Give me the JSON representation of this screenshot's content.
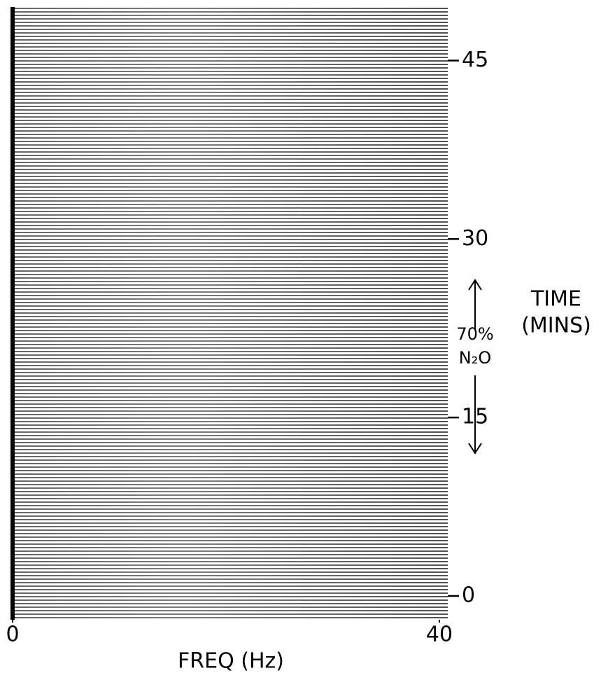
{
  "chart_data": {
    "type": "spectral-array",
    "x_label": "FREQ (Hz)",
    "y_label": [
      "TIME",
      "(MINS)"
    ],
    "annotations": [
      "70%",
      "N₂O"
    ],
    "xlim": [
      0,
      40
    ],
    "xticks": [
      0,
      40
    ],
    "ylim": [
      -2,
      49.5
    ],
    "yticks": [
      0,
      15,
      30,
      45
    ]
  }
}
